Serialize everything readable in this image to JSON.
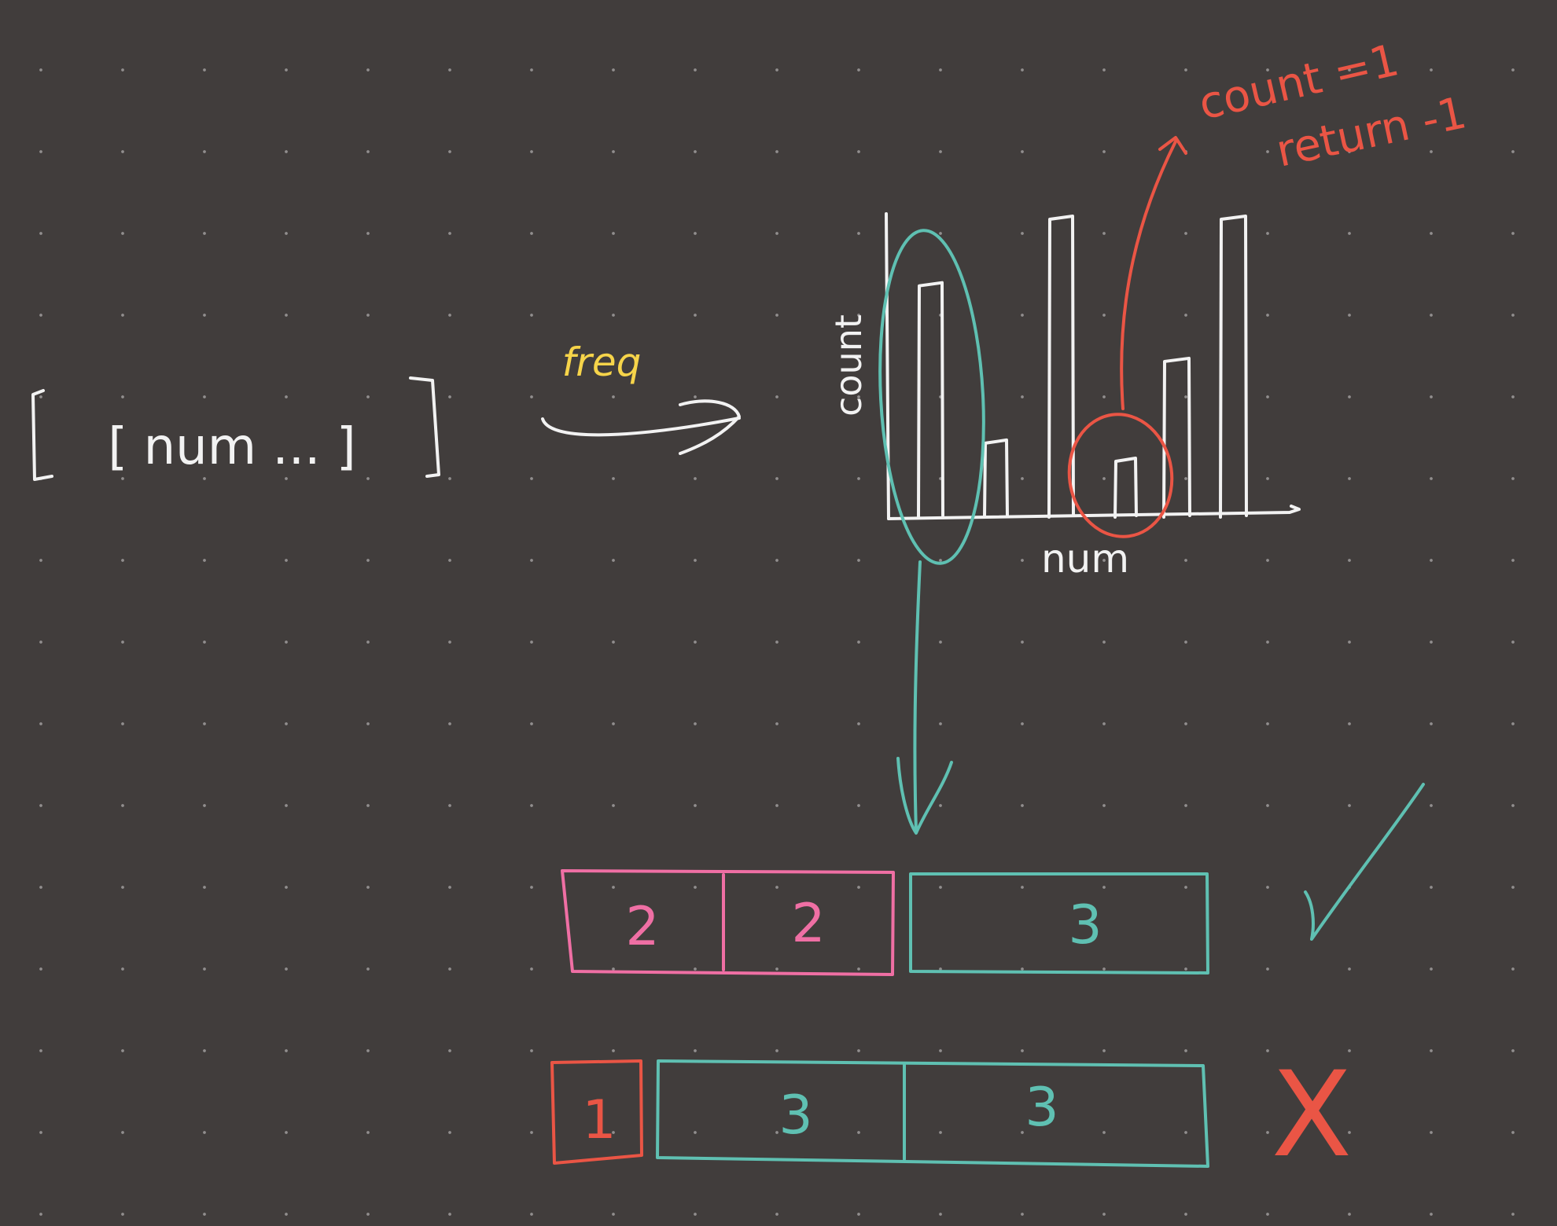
{
  "colors": {
    "background": "#413d3c",
    "white": "#f2f2f2",
    "yellow": "#f6d44a",
    "teal": "#5fc0b2",
    "red": "#ea5545",
    "pink": "#ef6fa4"
  },
  "input": {
    "label": "[ num ... ]"
  },
  "arrow": {
    "label": "freq"
  },
  "chart": {
    "ylabel": "count",
    "xlabel": "num",
    "bar_heights": [
      0.78,
      0.26,
      1.0,
      0.2,
      0.53,
      1.0
    ]
  },
  "annotation": {
    "line1": "count =1",
    "line2": "return -1"
  },
  "groups": {
    "valid": {
      "cells": [
        "2",
        "2",
        "3"
      ],
      "mark": "✓"
    },
    "invalid": {
      "cells": [
        "1",
        "3",
        "3"
      ],
      "mark": "X"
    }
  }
}
